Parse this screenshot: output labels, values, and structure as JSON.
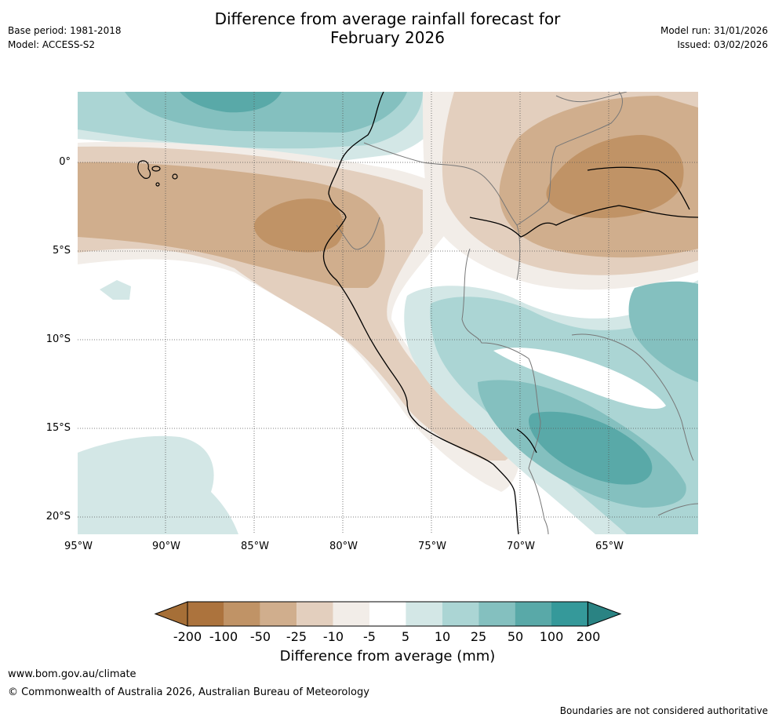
{
  "header": {
    "title_line1": "Difference from average rainfall forecast for",
    "title_line2": "February 2026",
    "base_period": "Base period: 1981-2018",
    "model": "Model: ACCESS-S2",
    "model_run": "Model run: 31/01/2026",
    "issued": "Issued: 03/02/2026"
  },
  "map": {
    "lat_labels": [
      "0°",
      "5°S",
      "10°S",
      "15°S",
      "20°S"
    ],
    "lon_labels": [
      "95°W",
      "90°W",
      "85°W",
      "80°W",
      "75°W",
      "70°W",
      "65°W"
    ]
  },
  "legend": {
    "ticks": [
      "-200",
      "-100",
      "-50",
      "-25",
      "-10",
      "-5",
      "5",
      "10",
      "25",
      "50",
      "100",
      "200"
    ],
    "colors": [
      "#a66f37",
      "#ac733d",
      "#c09366",
      "#d0ae8d",
      "#e3cfbe",
      "#f2ede8",
      "#ffffff",
      "#d3e7e6",
      "#abd5d4",
      "#84c0bf",
      "#59a9a8",
      "#35999a",
      "#2a8383"
    ],
    "label": "Difference from average (mm)"
  },
  "footer": {
    "website": "www.bom.gov.au/climate",
    "copyright": "© Commonwealth of Australia 2026, Australian Bureau of Meteorology",
    "disclaimer": "Boundaries are not considered authoritative"
  }
}
